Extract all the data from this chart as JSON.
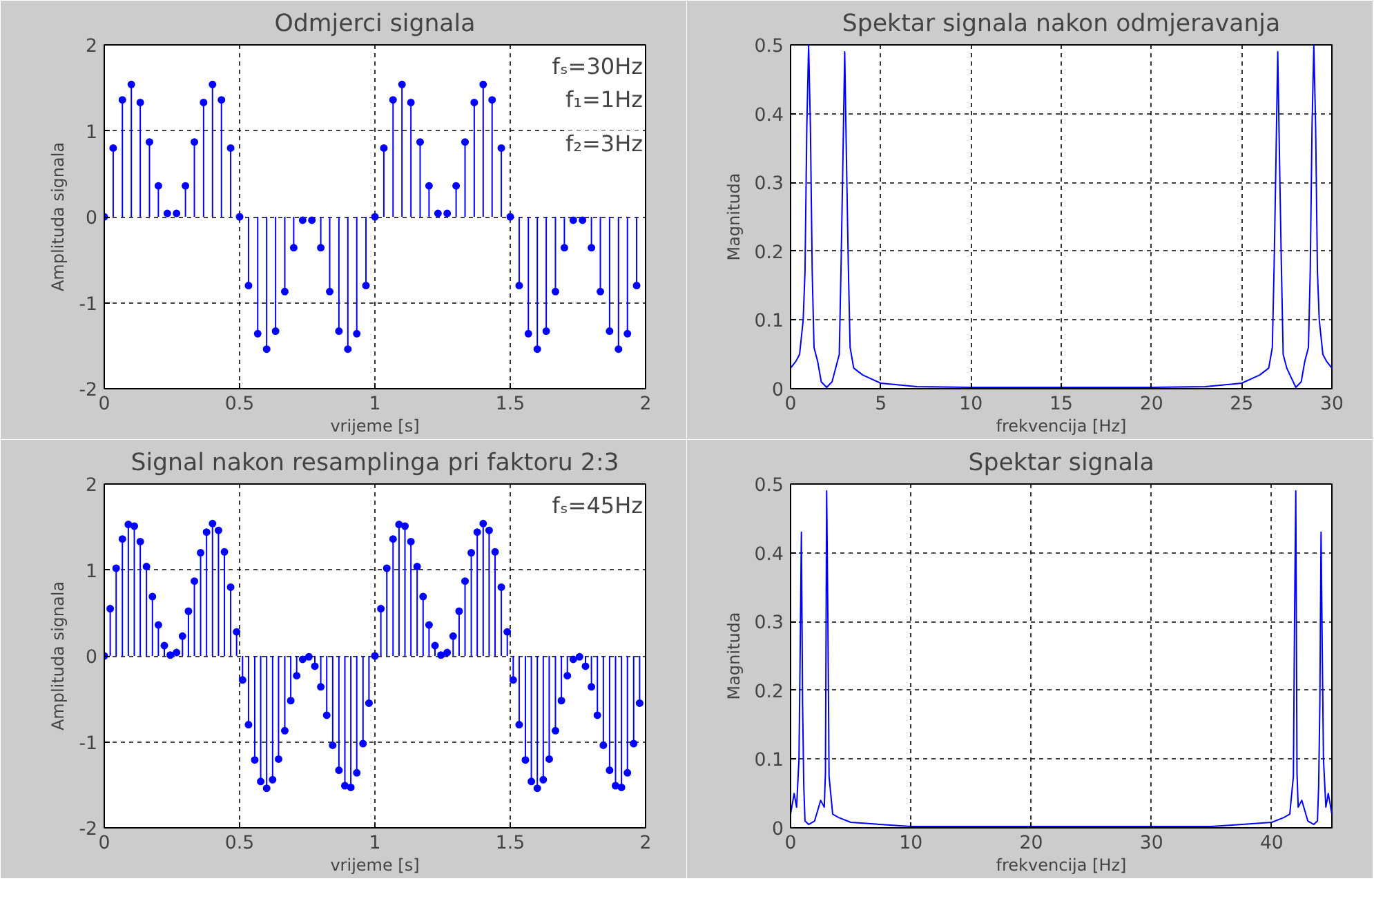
{
  "chart_data": [
    {
      "type": "lollipop",
      "title": "Odmjerci signala",
      "xlabel": "vrijeme [s]",
      "ylabel": "Amplituda signala",
      "color": "#0000ff",
      "marker": "circle",
      "grid": true,
      "xlim": [
        0,
        2
      ],
      "ylim": [
        -2,
        2
      ],
      "xticks": [
        0,
        0.5,
        1,
        1.5,
        2
      ],
      "yticks": [
        -2,
        -1,
        0,
        1,
        2
      ],
      "annotations": [
        "fₛ=30Hz",
        "f₁=1Hz",
        "f₂=3Hz"
      ],
      "x": [
        0,
        0.033,
        0.067,
        0.1,
        0.133,
        0.167,
        0.2,
        0.233,
        0.267,
        0.3,
        0.333,
        0.367,
        0.4,
        0.433,
        0.467,
        0.5,
        0.533,
        0.567,
        0.6,
        0.633,
        0.667,
        0.7,
        0.733,
        0.767,
        0.8,
        0.833,
        0.867,
        0.9,
        0.933,
        0.967,
        1,
        1.033,
        1.067,
        1.1,
        1.133,
        1.167,
        1.2,
        1.233,
        1.267,
        1.3,
        1.333,
        1.367,
        1.4,
        1.433,
        1.467,
        1.5,
        1.533,
        1.567,
        1.6,
        1.633,
        1.667,
        1.7,
        1.733,
        1.767,
        1.8,
        1.833,
        1.867,
        1.9,
        1.933,
        1.967
      ],
      "values": [
        0,
        0.8,
        1.36,
        1.54,
        1.33,
        0.87,
        0.36,
        0.04,
        0.04,
        0.36,
        0.87,
        1.33,
        1.54,
        1.36,
        0.8,
        0,
        -0.8,
        -1.36,
        -1.54,
        -1.33,
        -0.87,
        -0.36,
        -0.04,
        -0.04,
        -0.36,
        -0.87,
        -1.33,
        -1.54,
        -1.36,
        -0.8,
        0,
        0.8,
        1.36,
        1.54,
        1.33,
        0.87,
        0.36,
        0.04,
        0.04,
        0.36,
        0.87,
        1.33,
        1.54,
        1.36,
        0.8,
        0,
        -0.8,
        -1.36,
        -1.54,
        -1.33,
        -0.87,
        -0.36,
        -0.04,
        -0.04,
        -0.36,
        -0.87,
        -1.33,
        -1.54,
        -1.36,
        -0.8
      ]
    },
    {
      "type": "line",
      "title": "Spektar signala nakon odmjeravanja",
      "xlabel": "frekvencija [Hz]",
      "ylabel": "Magnituda",
      "color": "#0000ff",
      "grid": true,
      "xlim": [
        0,
        30
      ],
      "ylim": [
        0,
        0.5
      ],
      "xticks": [
        0,
        5,
        10,
        15,
        20,
        25,
        30
      ],
      "yticks": [
        0,
        0.1,
        0.2,
        0.3,
        0.4,
        0.5
      ],
      "x": [
        0,
        0.3,
        0.5,
        0.7,
        0.8,
        0.9,
        1,
        1.1,
        1.2,
        1.3,
        1.5,
        1.7,
        2,
        2.3,
        2.5,
        2.7,
        2.8,
        2.9,
        3,
        3.1,
        3.2,
        3.3,
        3.5,
        4,
        5,
        7,
        10,
        15,
        20,
        23,
        25,
        26,
        26.5,
        26.7,
        26.8,
        26.9,
        27,
        27.1,
        27.2,
        27.3,
        27.5,
        28,
        28.3,
        28.5,
        28.7,
        28.8,
        28.9,
        29,
        29.1,
        29.2,
        29.3,
        29.5,
        29.7,
        30
      ],
      "values": [
        0.03,
        0.04,
        0.05,
        0.1,
        0.17,
        0.38,
        0.5,
        0.38,
        0.17,
        0.06,
        0.04,
        0.01,
        0.002,
        0.01,
        0.03,
        0.05,
        0.18,
        0.33,
        0.49,
        0.33,
        0.18,
        0.06,
        0.03,
        0.02,
        0.008,
        0.003,
        0.002,
        0.002,
        0.002,
        0.003,
        0.008,
        0.02,
        0.03,
        0.06,
        0.18,
        0.33,
        0.49,
        0.33,
        0.18,
        0.05,
        0.03,
        0.002,
        0.01,
        0.04,
        0.06,
        0.17,
        0.38,
        0.5,
        0.38,
        0.17,
        0.1,
        0.05,
        0.04,
        0.03
      ]
    },
    {
      "type": "lollipop",
      "title": "Signal nakon resamplinga pri faktoru 2:3",
      "xlabel": "vrijeme [s]",
      "ylabel": "Amplituda signala",
      "color": "#0000ff",
      "marker": "circle",
      "grid": true,
      "xlim": [
        0,
        2
      ],
      "ylim": [
        -2,
        2
      ],
      "xticks": [
        0,
        0.5,
        1,
        1.5,
        2
      ],
      "yticks": [
        -2,
        -1,
        0,
        1,
        2
      ],
      "annotations": [
        "fₛ=45Hz"
      ],
      "x": [
        0,
        0.022,
        0.044,
        0.067,
        0.089,
        0.111,
        0.133,
        0.156,
        0.178,
        0.2,
        0.222,
        0.244,
        0.267,
        0.289,
        0.311,
        0.333,
        0.356,
        0.378,
        0.4,
        0.422,
        0.444,
        0.467,
        0.489,
        0.511,
        0.533,
        0.556,
        0.578,
        0.6,
        0.622,
        0.644,
        0.667,
        0.689,
        0.711,
        0.733,
        0.756,
        0.778,
        0.8,
        0.822,
        0.844,
        0.867,
        0.889,
        0.911,
        0.933,
        0.956,
        0.978,
        1,
        1.022,
        1.044,
        1.067,
        1.089,
        1.111,
        1.133,
        1.156,
        1.178,
        1.2,
        1.222,
        1.244,
        1.267,
        1.289,
        1.311,
        1.333,
        1.356,
        1.378,
        1.4,
        1.422,
        1.444,
        1.467,
        1.489,
        1.511,
        1.533,
        1.556,
        1.578,
        1.6,
        1.622,
        1.644,
        1.667,
        1.689,
        1.711,
        1.733,
        1.756,
        1.778,
        1.8,
        1.822,
        1.844,
        1.867,
        1.889,
        1.911,
        1.933,
        1.956,
        1.978
      ],
      "values": [
        0,
        0.55,
        1.02,
        1.36,
        1.53,
        1.51,
        1.33,
        1.04,
        0.69,
        0.36,
        0.12,
        0.01,
        0.04,
        0.23,
        0.52,
        0.87,
        1.2,
        1.44,
        1.54,
        1.46,
        1.21,
        0.8,
        0.28,
        -0.28,
        -0.8,
        -1.21,
        -1.46,
        -1.54,
        -1.44,
        -1.2,
        -0.87,
        -0.52,
        -0.23,
        -0.04,
        -0.01,
        -0.12,
        -0.36,
        -0.69,
        -1.04,
        -1.33,
        -1.51,
        -1.53,
        -1.36,
        -1.02,
        -0.55,
        0,
        0.55,
        1.02,
        1.36,
        1.53,
        1.51,
        1.33,
        1.04,
        0.69,
        0.36,
        0.12,
        0.01,
        0.04,
        0.23,
        0.52,
        0.87,
        1.2,
        1.44,
        1.54,
        1.46,
        1.21,
        0.8,
        0.28,
        -0.28,
        -0.8,
        -1.21,
        -1.46,
        -1.54,
        -1.44,
        -1.2,
        -0.87,
        -0.52,
        -0.23,
        -0.04,
        -0.01,
        -0.12,
        -0.36,
        -0.69,
        -1.04,
        -1.33,
        -1.51,
        -1.53,
        -1.36,
        -1.02,
        -0.55
      ]
    },
    {
      "type": "line",
      "title": "Spektar signala",
      "xlabel": "frekvencija [Hz]",
      "ylabel": "Magnituda",
      "color": "#0000ff",
      "grid": true,
      "xlim": [
        0,
        45
      ],
      "ylim": [
        0,
        0.5
      ],
      "xticks": [
        0,
        10,
        20,
        30,
        40
      ],
      "yticks": [
        0,
        0.1,
        0.2,
        0.3,
        0.4,
        0.5
      ],
      "x": [
        0,
        0.3,
        0.5,
        0.7,
        0.8,
        0.9,
        1,
        1.1,
        1.2,
        1.5,
        2,
        2.5,
        2.8,
        2.9,
        3,
        3.1,
        3.2,
        3.5,
        4,
        5,
        10,
        20,
        25,
        35,
        40,
        41,
        41.5,
        41.8,
        41.9,
        42,
        42.1,
        42.2,
        42.5,
        43,
        43.5,
        43.8,
        43.9,
        44,
        44.1,
        44.2,
        44.3,
        44.5,
        44.7,
        45
      ],
      "values": [
        0.02,
        0.05,
        0.03,
        0.1,
        0.26,
        0.43,
        0.18,
        0.06,
        0.01,
        0.005,
        0.01,
        0.04,
        0.03,
        0.08,
        0.49,
        0.31,
        0.075,
        0.02,
        0.015,
        0.008,
        0.002,
        0.002,
        0.002,
        0.002,
        0.008,
        0.015,
        0.02,
        0.075,
        0.31,
        0.49,
        0.08,
        0.03,
        0.04,
        0.01,
        0.005,
        0.01,
        0.06,
        0.18,
        0.43,
        0.26,
        0.1,
        0.03,
        0.05,
        0.02
      ]
    }
  ]
}
